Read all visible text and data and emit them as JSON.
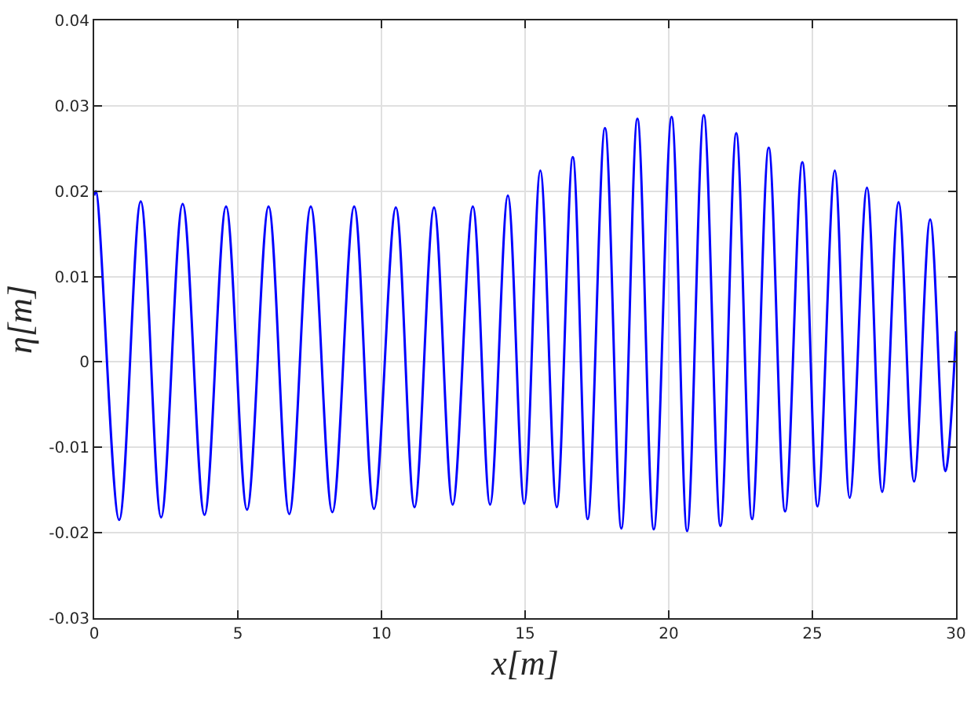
{
  "chart_data": {
    "type": "line",
    "xlabel": "x[m]",
    "ylabel": "η[m]",
    "xlim": [
      0,
      30
    ],
    "ylim": [
      -0.03,
      0.04
    ],
    "xticks": [
      0,
      5,
      10,
      15,
      20,
      25,
      30
    ],
    "yticks": [
      -0.03,
      -0.02,
      -0.01,
      0,
      0.01,
      0.02,
      0.03,
      0.04
    ],
    "grid": true,
    "marker": "none",
    "line_style": "solid",
    "series": [
      {
        "color": "#0000ff",
        "x": [
          0,
          0.06,
          0.87,
          1.62,
          2.33,
          3.08,
          3.84,
          4.59,
          5.32,
          6.07,
          6.79,
          7.54,
          8.29,
          9.05,
          9.74,
          10.5,
          11.15,
          11.83,
          12.48,
          13.18,
          13.78,
          14.4,
          14.97,
          15.53,
          16.1,
          16.66,
          17.18,
          17.78,
          18.35,
          18.91,
          19.48,
          20.1,
          20.64,
          21.22,
          21.8,
          22.35,
          22.9,
          23.48,
          24.05,
          24.65,
          25.18,
          25.78,
          26.3,
          26.9,
          27.43,
          28.0,
          28.54,
          29.1,
          29.63,
          30
        ],
        "values": [
          0.0195,
          0.02,
          -0.0185,
          0.0188,
          -0.0182,
          0.0185,
          -0.0179,
          0.0182,
          -0.0173,
          0.0182,
          -0.0178,
          0.0182,
          -0.0176,
          0.0182,
          -0.0172,
          0.0181,
          -0.017,
          0.0181,
          -0.0167,
          0.0182,
          -0.0167,
          0.0195,
          -0.0166,
          0.0224,
          -0.017,
          0.024,
          -0.0184,
          0.0274,
          -0.0195,
          0.0285,
          -0.0196,
          0.0287,
          -0.0198,
          0.0289,
          -0.0192,
          0.0268,
          -0.0184,
          0.0251,
          -0.0175,
          0.0234,
          -0.0169,
          0.0224,
          -0.0159,
          0.0204,
          -0.0152,
          0.0187,
          -0.014,
          0.0167,
          -0.0128,
          0.0036
        ]
      }
    ]
  }
}
